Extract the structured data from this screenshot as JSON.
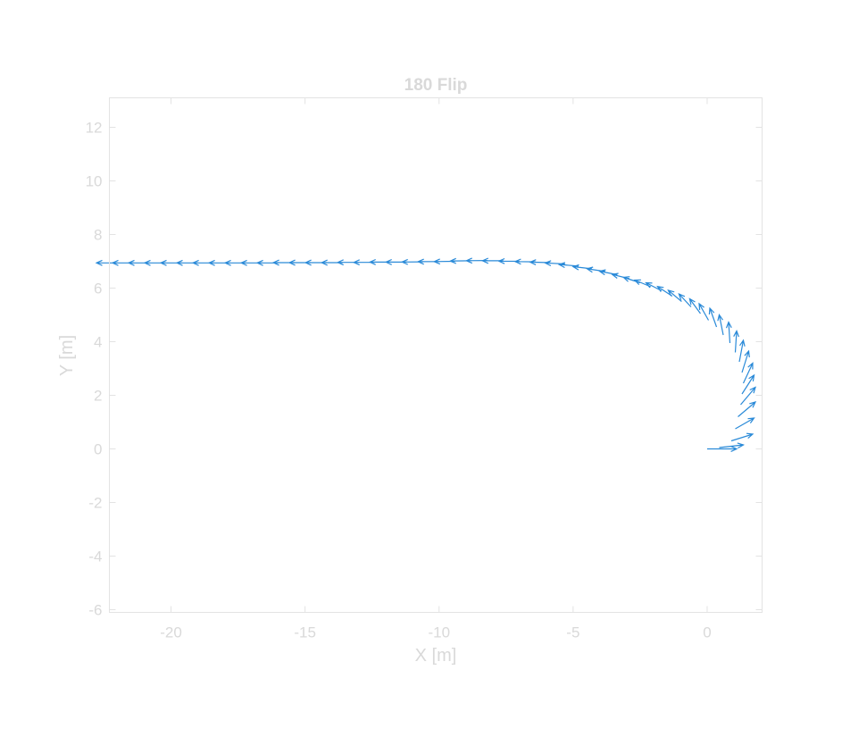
{
  "chart_data": {
    "type": "scatter",
    "plot_style": "quiver",
    "title": "180 Flip",
    "xlabel": "X [m]",
    "ylabel": "Y [m]",
    "xlim": [
      -22.3,
      2.05
    ],
    "ylim": [
      -6.1,
      13.1
    ],
    "xticks": [
      -20,
      -15,
      -10,
      -5,
      0
    ],
    "yticks": [
      -6,
      -4,
      -2,
      0,
      2,
      4,
      6,
      8,
      10,
      12
    ],
    "xtick_labels": [
      "-20",
      "-15",
      "-10",
      "-5",
      "0"
    ],
    "ytick_labels": [
      "-6",
      "-4",
      "-2",
      "0",
      "2",
      "4",
      "6",
      "8",
      "10",
      "12"
    ],
    "grid": false,
    "series_color": "#2a8ad8",
    "axis_color": "#e3e3e3",
    "text_color": "#d9d9d9",
    "vectors": {
      "x": [
        0.0,
        0.45,
        0.9,
        1.05,
        1.15,
        1.25,
        1.3,
        1.35,
        1.3,
        1.2,
        1.05,
        0.85,
        0.6,
        0.35,
        0.05,
        -0.25,
        -0.6,
        -0.95,
        -1.3,
        -1.7,
        -2.1,
        -2.5,
        -2.9,
        -3.35,
        -3.8,
        -4.3,
        -4.8,
        -5.3,
        -5.85,
        -6.4,
        -7.0,
        -7.6,
        -8.2,
        -8.8,
        -9.4,
        -10.0,
        -10.6,
        -11.2,
        -11.8,
        -12.4,
        -13.0,
        -13.6,
        -14.2,
        -14.8,
        -15.4,
        -16.0,
        -16.6,
        -17.2,
        -17.8,
        -18.4,
        -19.0,
        -19.6,
        -20.2,
        -20.8,
        -21.4,
        -22.0
      ],
      "y": [
        0.0,
        0.05,
        0.3,
        0.75,
        1.2,
        1.65,
        2.05,
        2.45,
        2.85,
        3.25,
        3.6,
        3.95,
        4.25,
        4.55,
        4.8,
        5.05,
        5.3,
        5.5,
        5.7,
        5.9,
        6.05,
        6.2,
        6.35,
        6.5,
        6.62,
        6.72,
        6.82,
        6.9,
        6.95,
        6.98,
        7.0,
        7.02,
        7.03,
        7.02,
        7.0,
        6.99,
        6.98,
        6.97,
        6.97,
        6.96,
        6.96,
        6.95,
        6.95,
        6.95,
        6.95,
        6.94,
        6.94,
        6.94,
        6.94,
        6.94,
        6.94,
        6.94,
        6.94,
        6.94,
        6.94,
        6.94
      ],
      "u": [
        1.1,
        0.9,
        0.8,
        0.7,
        0.65,
        0.55,
        0.45,
        0.35,
        0.25,
        0.15,
        0.05,
        -0.05,
        -0.15,
        -0.25,
        -0.35,
        -0.4,
        -0.45,
        -0.5,
        -0.55,
        -0.58,
        -0.6,
        -0.62,
        -0.64,
        -0.66,
        -0.68,
        -0.7,
        -0.72,
        -0.74,
        -0.75,
        -0.76,
        -0.77,
        -0.78,
        -0.78,
        -0.78,
        -0.78,
        -0.78,
        -0.78,
        -0.78,
        -0.78,
        -0.78,
        -0.78,
        -0.78,
        -0.78,
        -0.78,
        -0.78,
        -0.78,
        -0.78,
        -0.78,
        -0.78,
        -0.78,
        -0.78,
        -0.78,
        -0.78,
        -0.78,
        -0.78,
        -0.78
      ],
      "v": [
        0.0,
        0.1,
        0.25,
        0.4,
        0.55,
        0.65,
        0.7,
        0.75,
        0.8,
        0.8,
        0.8,
        0.78,
        0.75,
        0.7,
        0.62,
        0.55,
        0.48,
        0.42,
        0.36,
        0.3,
        0.25,
        0.2,
        0.16,
        0.13,
        0.1,
        0.08,
        0.06,
        0.04,
        0.02,
        0.01,
        0.005,
        0.0,
        -0.005,
        -0.01,
        -0.01,
        -0.005,
        -0.005,
        0.0,
        0.0,
        0.0,
        0.0,
        0.0,
        0.0,
        0.0,
        0.0,
        0.0,
        0.0,
        0.0,
        0.0,
        0.0,
        0.0,
        0.0,
        0.0,
        0.0,
        0.0,
        0.0
      ]
    }
  }
}
